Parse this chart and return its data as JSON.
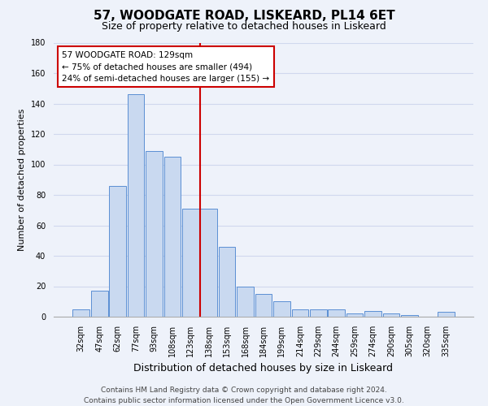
{
  "title": "57, WOODGATE ROAD, LISKEARD, PL14 6ET",
  "subtitle": "Size of property relative to detached houses in Liskeard",
  "xlabel": "Distribution of detached houses by size in Liskeard",
  "ylabel": "Number of detached properties",
  "bar_labels": [
    "32sqm",
    "47sqm",
    "62sqm",
    "77sqm",
    "93sqm",
    "108sqm",
    "123sqm",
    "138sqm",
    "153sqm",
    "168sqm",
    "184sqm",
    "199sqm",
    "214sqm",
    "229sqm",
    "244sqm",
    "259sqm",
    "274sqm",
    "290sqm",
    "305sqm",
    "320sqm",
    "335sqm"
  ],
  "bar_heights": [
    5,
    17,
    86,
    146,
    109,
    105,
    71,
    71,
    46,
    20,
    15,
    10,
    5,
    5,
    5,
    2,
    4,
    2,
    1,
    0,
    3
  ],
  "bar_color": "#c9d9f0",
  "bar_edge_color": "#5b8fd4",
  "ylim": [
    0,
    180
  ],
  "yticks": [
    0,
    20,
    40,
    60,
    80,
    100,
    120,
    140,
    160,
    180
  ],
  "vline_x_index": 6.5,
  "vline_color": "#cc0000",
  "annotation_text": "57 WOODGATE ROAD: 129sqm\n← 75% of detached houses are smaller (494)\n24% of semi-detached houses are larger (155) →",
  "annotation_box_color": "#ffffff",
  "annotation_box_edge": "#cc0000",
  "footer_line1": "Contains HM Land Registry data © Crown copyright and database right 2024.",
  "footer_line2": "Contains public sector information licensed under the Open Government Licence v3.0.",
  "bg_color": "#eef2fa",
  "grid_color": "#d0d8ee",
  "title_fontsize": 11,
  "subtitle_fontsize": 9,
  "xlabel_fontsize": 9,
  "ylabel_fontsize": 8,
  "tick_fontsize": 7,
  "footer_fontsize": 6.5
}
